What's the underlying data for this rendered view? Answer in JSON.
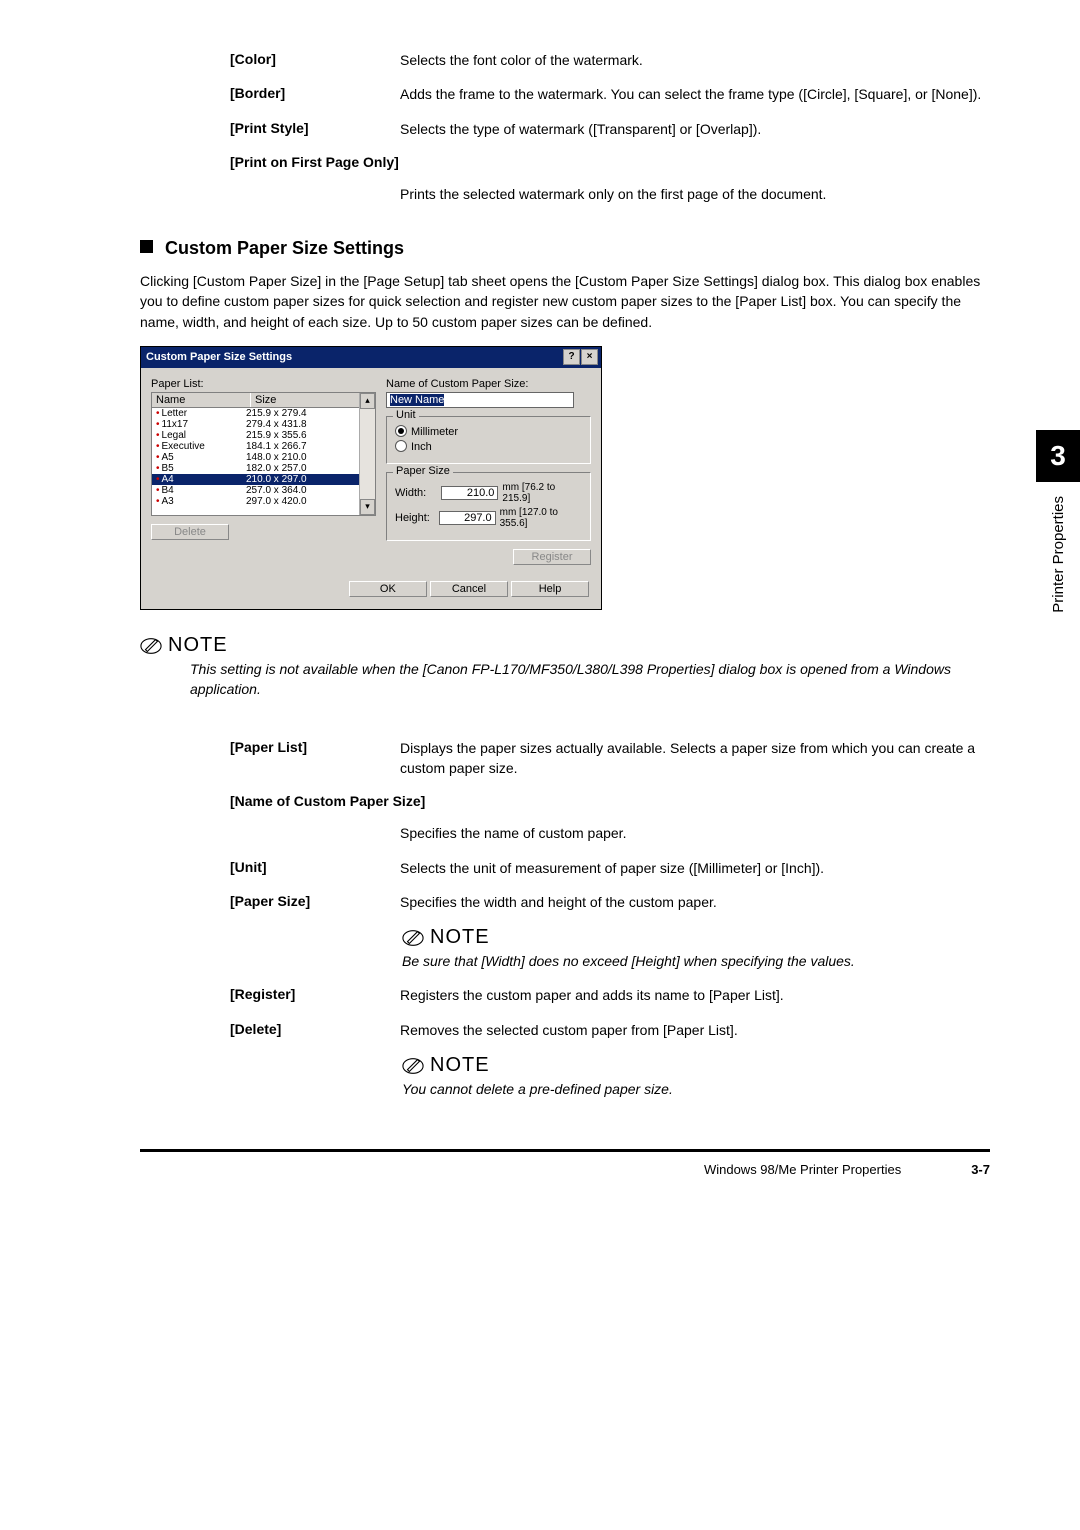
{
  "top_defs": [
    {
      "term": "[Color]",
      "desc": "Selects the font color of the watermark."
    },
    {
      "term": "[Border]",
      "desc": "Adds the frame to the watermark. You can select the frame type ([Circle], [Square], or [None])."
    },
    {
      "term": "[Print Style]",
      "desc": "Selects the type of watermark ([Transparent] or [Overlap])."
    },
    {
      "term": "[Print on First Page Only]",
      "desc": ""
    }
  ],
  "top_trailing_desc": "Prints the selected watermark only on the first page of the document.",
  "heading": "Custom Paper Size Settings",
  "intro": "Clicking [Custom Paper Size] in the [Page Setup] tab sheet opens the [Custom Paper Size Settings] dialog box. This dialog box enables you to define custom paper sizes for quick selection and register new custom paper sizes to the [Paper List] box. You can specify the name, width, and height of each size. Up to 50 custom paper sizes can be defined.",
  "dialog": {
    "title": "Custom Paper Size Settings",
    "paper_list_label": "Paper List:",
    "name_col": "Name",
    "size_col": "Size",
    "rows": [
      {
        "name": "Letter",
        "size": "215.9 x 279.4",
        "selected": false
      },
      {
        "name": "11x17",
        "size": "279.4 x 431.8",
        "selected": false
      },
      {
        "name": "Legal",
        "size": "215.9 x 355.6",
        "selected": false
      },
      {
        "name": "Executive",
        "size": "184.1 x 266.7",
        "selected": false
      },
      {
        "name": "A5",
        "size": "148.0 x 210.0",
        "selected": false
      },
      {
        "name": "B5",
        "size": "182.0 x 257.0",
        "selected": false
      },
      {
        "name": "A4",
        "size": "210.0 x 297.0",
        "selected": true
      },
      {
        "name": "B4",
        "size": "257.0 x 364.0",
        "selected": false
      },
      {
        "name": "A3",
        "size": "297.0 x 420.0",
        "selected": false
      }
    ],
    "delete_btn": "Delete",
    "name_label": "Name of Custom Paper Size:",
    "name_value": "New Name",
    "unit_legend": "Unit",
    "unit_mm": "Millimeter",
    "unit_in": "Inch",
    "paper_size_legend": "Paper Size",
    "width_label": "Width:",
    "width_value": "210.0",
    "width_hint": "mm [76.2 to 215.9]",
    "height_label": "Height:",
    "height_value": "297.0",
    "height_hint": "mm [127.0 to 355.6]",
    "register_btn": "Register",
    "ok_btn": "OK",
    "cancel_btn": "Cancel",
    "help_btn": "Help"
  },
  "note1": {
    "label": "NOTE",
    "body": "This setting is not available when the [Canon FP-L170/MF350/L380/L398 Properties] dialog box is opened from a Windows application."
  },
  "lower_defs": [
    {
      "term": "[Paper List]",
      "desc": "Displays the paper sizes actually available. Selects a paper size from which you can create a custom paper size."
    },
    {
      "term": "[Name of Custom Paper Size]",
      "desc": ""
    }
  ],
  "lower_trailing_desc": "Specifies the name of custom paper.",
  "lower_defs2": [
    {
      "term": "[Unit]",
      "desc": "Selects the unit of measurement of paper size ([Millimeter] or [Inch])."
    },
    {
      "term": "[Paper Size]",
      "desc": "Specifies the width and height of the custom paper."
    }
  ],
  "note2": {
    "label": "NOTE",
    "body": "Be sure that [Width] does no exceed [Height] when specifying the values."
  },
  "lower_defs3": [
    {
      "term": "[Register]",
      "desc": "Registers the custom paper and adds its name to [Paper List]."
    },
    {
      "term": "[Delete]",
      "desc": "Removes the selected custom paper from [Paper List]."
    }
  ],
  "note3": {
    "label": "NOTE",
    "body": "You cannot delete a pre-defined paper size."
  },
  "side": {
    "num": "3",
    "text": "Printer Properties"
  },
  "footer": {
    "text": "Windows 98/Me Printer Properties",
    "page": "3-7"
  }
}
